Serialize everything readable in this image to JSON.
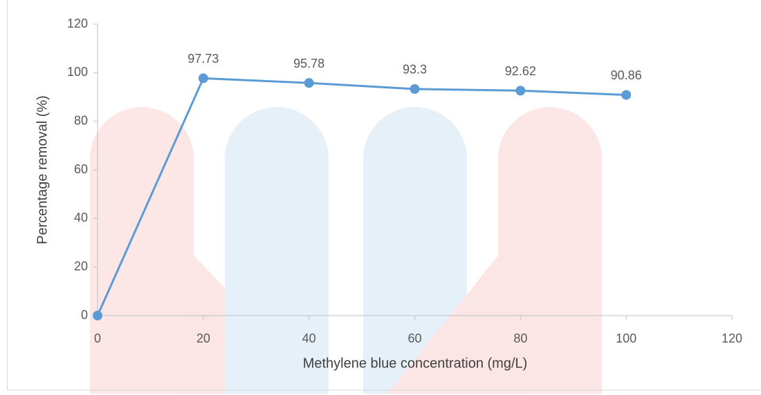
{
  "chart_data": {
    "type": "line",
    "x_label": "Methylene blue concentration (mg/L)",
    "y_label": "Percentage removal (%)",
    "x": [
      0,
      20,
      40,
      60,
      80,
      100
    ],
    "series": [
      {
        "color": "#5b9bd5",
        "values": [
          0,
          97.73,
          95.78,
          93.3,
          92.62,
          90.86
        ],
        "value_labels": [
          null,
          "97.73",
          "95.78",
          "93.3",
          "92.62",
          "90.86"
        ]
      }
    ],
    "xlim": [
      0,
      120
    ],
    "xticks": [
      0,
      20,
      40,
      60,
      80,
      100,
      120
    ],
    "ylim": [
      0,
      120
    ],
    "yticks": [
      0,
      20,
      40,
      60,
      80,
      100,
      120
    ],
    "grid": false
  }
}
